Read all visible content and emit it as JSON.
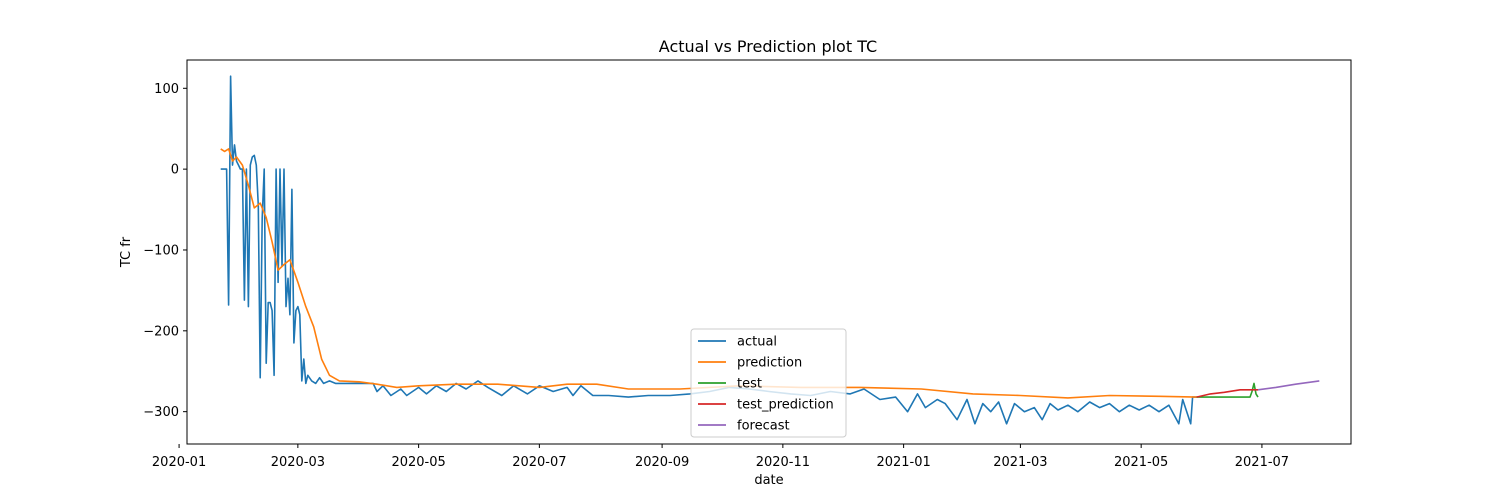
{
  "chart_data": {
    "type": "line",
    "title": "Actual vs Prediction plot TC",
    "xlabel": "date",
    "ylabel": "TC fr",
    "xlim": [
      "2020-01-05",
      "2021-08-15"
    ],
    "ylim": [
      -340,
      135
    ],
    "x_ticks": [
      "2020-01",
      "2020-03",
      "2020-05",
      "2020-07",
      "2020-09",
      "2020-11",
      "2021-01",
      "2021-03",
      "2021-05",
      "2021-07"
    ],
    "y_ticks": [
      100,
      0,
      -100,
      -200,
      -300
    ],
    "y_tick_labels": [
      "100",
      "0",
      "−100",
      "−200",
      "−300"
    ],
    "grid": false,
    "legend_position": "bottom-center",
    "series": [
      {
        "name": "actual",
        "color": "#1f77b4",
        "points": [
          [
            "2020-01-22",
            0
          ],
          [
            "2020-01-24",
            0
          ],
          [
            "2020-01-25",
            0
          ],
          [
            "2020-01-26",
            -168
          ],
          [
            "2020-01-27",
            115
          ],
          [
            "2020-01-28",
            5
          ],
          [
            "2020-01-29",
            30
          ],
          [
            "2020-01-30",
            10
          ],
          [
            "2020-01-31",
            5
          ],
          [
            "2020-02-01",
            0
          ],
          [
            "2020-02-02",
            0
          ],
          [
            "2020-02-03",
            -162
          ],
          [
            "2020-02-04",
            0
          ],
          [
            "2020-02-05",
            -170
          ],
          [
            "2020-02-06",
            5
          ],
          [
            "2020-02-07",
            15
          ],
          [
            "2020-02-08",
            17
          ],
          [
            "2020-02-09",
            5
          ],
          [
            "2020-02-10",
            -45
          ],
          [
            "2020-02-11",
            -258
          ],
          [
            "2020-02-12",
            -60
          ],
          [
            "2020-02-13",
            0
          ],
          [
            "2020-02-14",
            -240
          ],
          [
            "2020-02-15",
            -165
          ],
          [
            "2020-02-16",
            -165
          ],
          [
            "2020-02-17",
            -175
          ],
          [
            "2020-02-18",
            -255
          ],
          [
            "2020-02-19",
            0
          ],
          [
            "2020-02-20",
            -140
          ],
          [
            "2020-02-21",
            0
          ],
          [
            "2020-02-22",
            -120
          ],
          [
            "2020-02-23",
            0
          ],
          [
            "2020-02-24",
            -170
          ],
          [
            "2020-02-25",
            -135
          ],
          [
            "2020-02-26",
            -180
          ],
          [
            "2020-02-27",
            -25
          ],
          [
            "2020-02-28",
            -215
          ],
          [
            "2020-02-29",
            -175
          ],
          [
            "2020-03-01",
            -170
          ],
          [
            "2020-03-02",
            -180
          ],
          [
            "2020-03-03",
            -262
          ],
          [
            "2020-03-04",
            -235
          ],
          [
            "2020-03-05",
            -265
          ],
          [
            "2020-03-06",
            -255
          ],
          [
            "2020-03-08",
            -262
          ],
          [
            "2020-03-10",
            -265
          ],
          [
            "2020-03-12",
            -258
          ],
          [
            "2020-03-14",
            -265
          ],
          [
            "2020-03-17",
            -262
          ],
          [
            "2020-03-20",
            -265
          ],
          [
            "2020-04-01",
            -265
          ],
          [
            "2020-04-08",
            -265
          ],
          [
            "2020-04-10",
            -275
          ],
          [
            "2020-04-13",
            -268
          ],
          [
            "2020-04-17",
            -280
          ],
          [
            "2020-04-22",
            -272
          ],
          [
            "2020-04-25",
            -280
          ],
          [
            "2020-05-01",
            -270
          ],
          [
            "2020-05-05",
            -278
          ],
          [
            "2020-05-10",
            -268
          ],
          [
            "2020-05-15",
            -275
          ],
          [
            "2020-05-20",
            -265
          ],
          [
            "2020-05-25",
            -272
          ],
          [
            "2020-05-31",
            -262
          ],
          [
            "2020-06-05",
            -270
          ],
          [
            "2020-06-12",
            -280
          ],
          [
            "2020-06-18",
            -268
          ],
          [
            "2020-06-25",
            -278
          ],
          [
            "2020-07-01",
            -268
          ],
          [
            "2020-07-08",
            -275
          ],
          [
            "2020-07-15",
            -270
          ],
          [
            "2020-07-18",
            -280
          ],
          [
            "2020-07-22",
            -268
          ],
          [
            "2020-07-28",
            -280
          ],
          [
            "2020-08-05",
            -280
          ],
          [
            "2020-08-15",
            -282
          ],
          [
            "2020-08-25",
            -280
          ],
          [
            "2020-09-05",
            -280
          ],
          [
            "2020-09-15",
            -278
          ],
          [
            "2020-09-25",
            -275
          ],
          [
            "2020-10-05",
            -270
          ],
          [
            "2020-10-15",
            -272
          ],
          [
            "2020-10-25",
            -275
          ],
          [
            "2020-11-05",
            -278
          ],
          [
            "2020-11-15",
            -280
          ],
          [
            "2020-11-25",
            -275
          ],
          [
            "2020-12-05",
            -278
          ],
          [
            "2020-12-12",
            -272
          ],
          [
            "2020-12-20",
            -285
          ],
          [
            "2020-12-28",
            -282
          ],
          [
            "2021-01-03",
            -300
          ],
          [
            "2021-01-08",
            -278
          ],
          [
            "2021-01-12",
            -295
          ],
          [
            "2021-01-18",
            -285
          ],
          [
            "2021-01-22",
            -290
          ],
          [
            "2021-01-28",
            -310
          ],
          [
            "2021-02-02",
            -285
          ],
          [
            "2021-02-06",
            -315
          ],
          [
            "2021-02-10",
            -290
          ],
          [
            "2021-02-14",
            -300
          ],
          [
            "2021-02-18",
            -288
          ],
          [
            "2021-02-22",
            -315
          ],
          [
            "2021-02-26",
            -290
          ],
          [
            "2021-03-03",
            -300
          ],
          [
            "2021-03-08",
            -295
          ],
          [
            "2021-03-12",
            -310
          ],
          [
            "2021-03-16",
            -290
          ],
          [
            "2021-03-20",
            -298
          ],
          [
            "2021-03-25",
            -292
          ],
          [
            "2021-03-30",
            -300
          ],
          [
            "2021-04-05",
            -288
          ],
          [
            "2021-04-10",
            -295
          ],
          [
            "2021-04-15",
            -290
          ],
          [
            "2021-04-20",
            -300
          ],
          [
            "2021-04-25",
            -292
          ],
          [
            "2021-04-30",
            -298
          ],
          [
            "2021-05-05",
            -292
          ],
          [
            "2021-05-10",
            -300
          ],
          [
            "2021-05-15",
            -292
          ],
          [
            "2021-05-20",
            -315
          ],
          [
            "2021-05-22",
            -285
          ],
          [
            "2021-05-26",
            -315
          ],
          [
            "2021-05-27",
            -282
          ],
          [
            "2021-05-29",
            -282
          ]
        ]
      },
      {
        "name": "prediction",
        "color": "#ff7f0e",
        "points": [
          [
            "2020-01-22",
            25
          ],
          [
            "2020-01-24",
            22
          ],
          [
            "2020-01-26",
            25
          ],
          [
            "2020-01-28",
            10
          ],
          [
            "2020-01-30",
            15
          ],
          [
            "2020-02-02",
            5
          ],
          [
            "2020-02-05",
            -20
          ],
          [
            "2020-02-08",
            -48
          ],
          [
            "2020-02-11",
            -42
          ],
          [
            "2020-02-14",
            -60
          ],
          [
            "2020-02-17",
            -90
          ],
          [
            "2020-02-20",
            -125
          ],
          [
            "2020-02-23",
            -118
          ],
          [
            "2020-02-26",
            -112
          ],
          [
            "2020-03-01",
            -140
          ],
          [
            "2020-03-05",
            -170
          ],
          [
            "2020-03-09",
            -195
          ],
          [
            "2020-03-13",
            -235
          ],
          [
            "2020-03-17",
            -255
          ],
          [
            "2020-03-22",
            -262
          ],
          [
            "2020-04-01",
            -263
          ],
          [
            "2020-04-10",
            -266
          ],
          [
            "2020-04-20",
            -270
          ],
          [
            "2020-05-01",
            -268
          ],
          [
            "2020-05-20",
            -266
          ],
          [
            "2020-06-10",
            -266
          ],
          [
            "2020-07-01",
            -270
          ],
          [
            "2020-07-15",
            -266
          ],
          [
            "2020-07-30",
            -266
          ],
          [
            "2020-08-15",
            -272
          ],
          [
            "2020-09-10",
            -272
          ],
          [
            "2020-10-10",
            -268
          ],
          [
            "2020-11-10",
            -270
          ],
          [
            "2020-12-10",
            -270
          ],
          [
            "2021-01-10",
            -272
          ],
          [
            "2021-02-05",
            -278
          ],
          [
            "2021-03-01",
            -280
          ],
          [
            "2021-03-25",
            -283
          ],
          [
            "2021-04-15",
            -280
          ],
          [
            "2021-05-10",
            -281
          ],
          [
            "2021-05-29",
            -282
          ]
        ]
      },
      {
        "name": "test",
        "color": "#2ca02c",
        "points": [
          [
            "2021-05-29",
            -282
          ],
          [
            "2021-06-10",
            -282
          ],
          [
            "2021-06-20",
            -282
          ],
          [
            "2021-06-25",
            -282
          ],
          [
            "2021-06-26",
            -275
          ],
          [
            "2021-06-27",
            -265
          ],
          [
            "2021-06-28",
            -278
          ],
          [
            "2021-06-29",
            -282
          ]
        ]
      },
      {
        "name": "test_prediction",
        "color": "#d62728",
        "points": [
          [
            "2021-05-29",
            -282
          ],
          [
            "2021-06-05",
            -278
          ],
          [
            "2021-06-12",
            -276
          ],
          [
            "2021-06-20",
            -273
          ],
          [
            "2021-06-29",
            -273
          ]
        ]
      },
      {
        "name": "forecast",
        "color": "#9467bd",
        "points": [
          [
            "2021-06-29",
            -273
          ],
          [
            "2021-07-08",
            -270
          ],
          [
            "2021-07-18",
            -266
          ],
          [
            "2021-07-30",
            -262
          ]
        ]
      }
    ]
  }
}
